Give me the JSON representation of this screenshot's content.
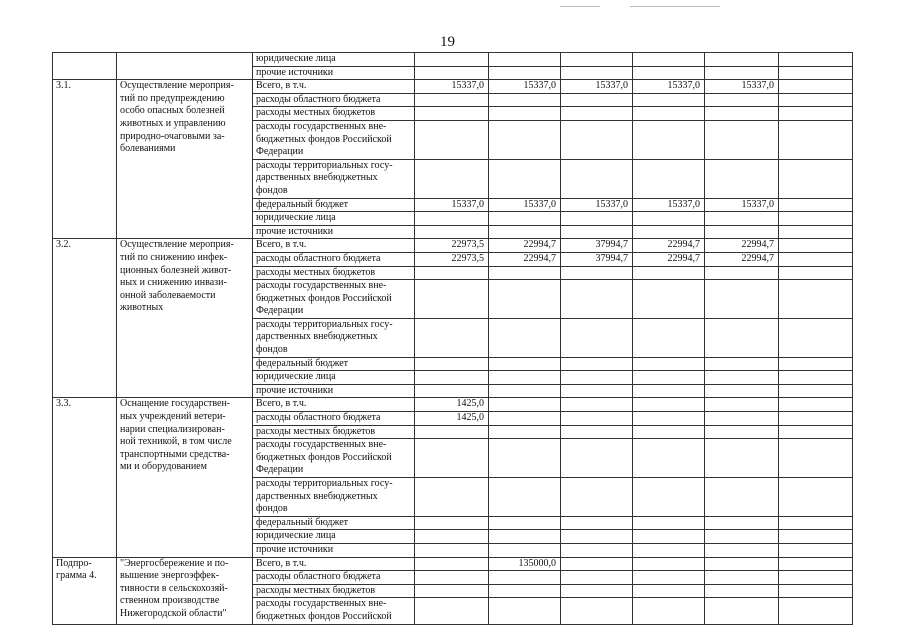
{
  "page_number": "19",
  "groups": [
    {
      "num": "",
      "title": "",
      "rows": [
        {
          "label": "юридические лица",
          "values": [
            "",
            "",
            "",
            "",
            "",
            ""
          ]
        },
        {
          "label": "прочие источники",
          "values": [
            "",
            "",
            "",
            "",
            "",
            ""
          ]
        }
      ]
    },
    {
      "num": "3.1.",
      "title": "Осуществление мероприя-\nтий по предупреждению\nособо опасных болезней\nживотных и управлению\nприродно-очаговыми за-\nболеваниями",
      "rows": [
        {
          "label": "Всего, в т.ч.",
          "values": [
            "15337,0",
            "15337,0",
            "15337,0",
            "15337,0",
            "15337,0",
            ""
          ]
        },
        {
          "label": "расходы областного бюджета",
          "values": [
            "",
            "",
            "",
            "",
            "",
            ""
          ]
        },
        {
          "label": "расходы местных бюджетов",
          "values": [
            "",
            "",
            "",
            "",
            "",
            ""
          ]
        },
        {
          "label": "расходы государственных вне-\nбюджетных фондов Российской\nФедерации",
          "values": [
            "",
            "",
            "",
            "",
            "",
            ""
          ]
        },
        {
          "label": "расходы территориальных госу-\nдарственных внебюджетных\nфондов",
          "values": [
            "",
            "",
            "",
            "",
            "",
            ""
          ]
        },
        {
          "label": "федеральный бюджет",
          "values": [
            "15337,0",
            "15337,0",
            "15337,0",
            "15337,0",
            "15337,0",
            ""
          ]
        },
        {
          "label": "юридические лица",
          "values": [
            "",
            "",
            "",
            "",
            "",
            ""
          ]
        },
        {
          "label": "прочие источники",
          "values": [
            "",
            "",
            "",
            "",
            "",
            ""
          ]
        }
      ]
    },
    {
      "num": "3.2.",
      "title": "Осуществление мероприя-\nтий по снижению инфек-\nционных болезней живот-\nных и снижению инвази-\nонной заболеваемости\nживотных",
      "rows": [
        {
          "label": "Всего, в т.ч.",
          "values": [
            "22973,5",
            "22994,7",
            "37994,7",
            "22994,7",
            "22994,7",
            ""
          ]
        },
        {
          "label": "расходы областного бюджета",
          "values": [
            "22973,5",
            "22994,7",
            "37994,7",
            "22994,7",
            "22994,7",
            ""
          ]
        },
        {
          "label": "расходы местных бюджетов",
          "values": [
            "",
            "",
            "",
            "",
            "",
            ""
          ]
        },
        {
          "label": "расходы государственных вне-\nбюджетных фондов Российской\nФедерации",
          "values": [
            "",
            "",
            "",
            "",
            "",
            ""
          ]
        },
        {
          "label": "расходы территориальных госу-\nдарственных внебюджетных\nфондов",
          "values": [
            "",
            "",
            "",
            "",
            "",
            ""
          ]
        },
        {
          "label": "федеральный бюджет",
          "values": [
            "",
            "",
            "",
            "",
            "",
            ""
          ]
        },
        {
          "label": "юридические лица",
          "values": [
            "",
            "",
            "",
            "",
            "",
            ""
          ]
        },
        {
          "label": "прочие источники",
          "values": [
            "",
            "",
            "",
            "",
            "",
            ""
          ]
        }
      ]
    },
    {
      "num": "3.3.",
      "title": "Оснащение государствен-\nных учреждений ветери-\nнарии специализирован-\nной техникой, в том числе\nтранспортными средства-\nми и оборудованием",
      "rows": [
        {
          "label": "Всего, в т.ч.",
          "values": [
            "1425,0",
            "",
            "",
            "",
            "",
            ""
          ]
        },
        {
          "label": "расходы областного бюджета",
          "values": [
            "1425,0",
            "",
            "",
            "",
            "",
            ""
          ]
        },
        {
          "label": "расходы местных бюджетов",
          "values": [
            "",
            "",
            "",
            "",
            "",
            ""
          ]
        },
        {
          "label": "расходы государственных вне-\nбюджетных фондов Российской\nФедерации",
          "values": [
            "",
            "",
            "",
            "",
            "",
            ""
          ]
        },
        {
          "label": "расходы территориальных госу-\nдарственных внебюджетных\nфондов",
          "values": [
            "",
            "",
            "",
            "",
            "",
            ""
          ]
        },
        {
          "label": "федеральный бюджет",
          "values": [
            "",
            "",
            "",
            "",
            "",
            ""
          ]
        },
        {
          "label": "юридические лица",
          "values": [
            "",
            "",
            "",
            "",
            "",
            ""
          ]
        },
        {
          "label": "прочие источники",
          "values": [
            "",
            "",
            "",
            "",
            "",
            ""
          ]
        }
      ]
    },
    {
      "num": "Подпро-\nграмма 4.",
      "title": "\"Энергосбережение и по-\nвышение энергоэффек-\nтивности в сельскохозяй-\nственном производстве\nНижегородской области\"",
      "rows": [
        {
          "label": "Всего, в т.ч.",
          "values": [
            "",
            "135000,0",
            "",
            "",
            "",
            ""
          ]
        },
        {
          "label": "расходы областного бюджета",
          "values": [
            "",
            "",
            "",
            "",
            "",
            ""
          ]
        },
        {
          "label": "расходы местных бюджетов",
          "values": [
            "",
            "",
            "",
            "",
            "",
            ""
          ]
        },
        {
          "label": "расходы государственных вне-\nбюджетных фондов Российской",
          "values": [
            "",
            "",
            "",
            "",
            "",
            ""
          ]
        }
      ]
    }
  ]
}
